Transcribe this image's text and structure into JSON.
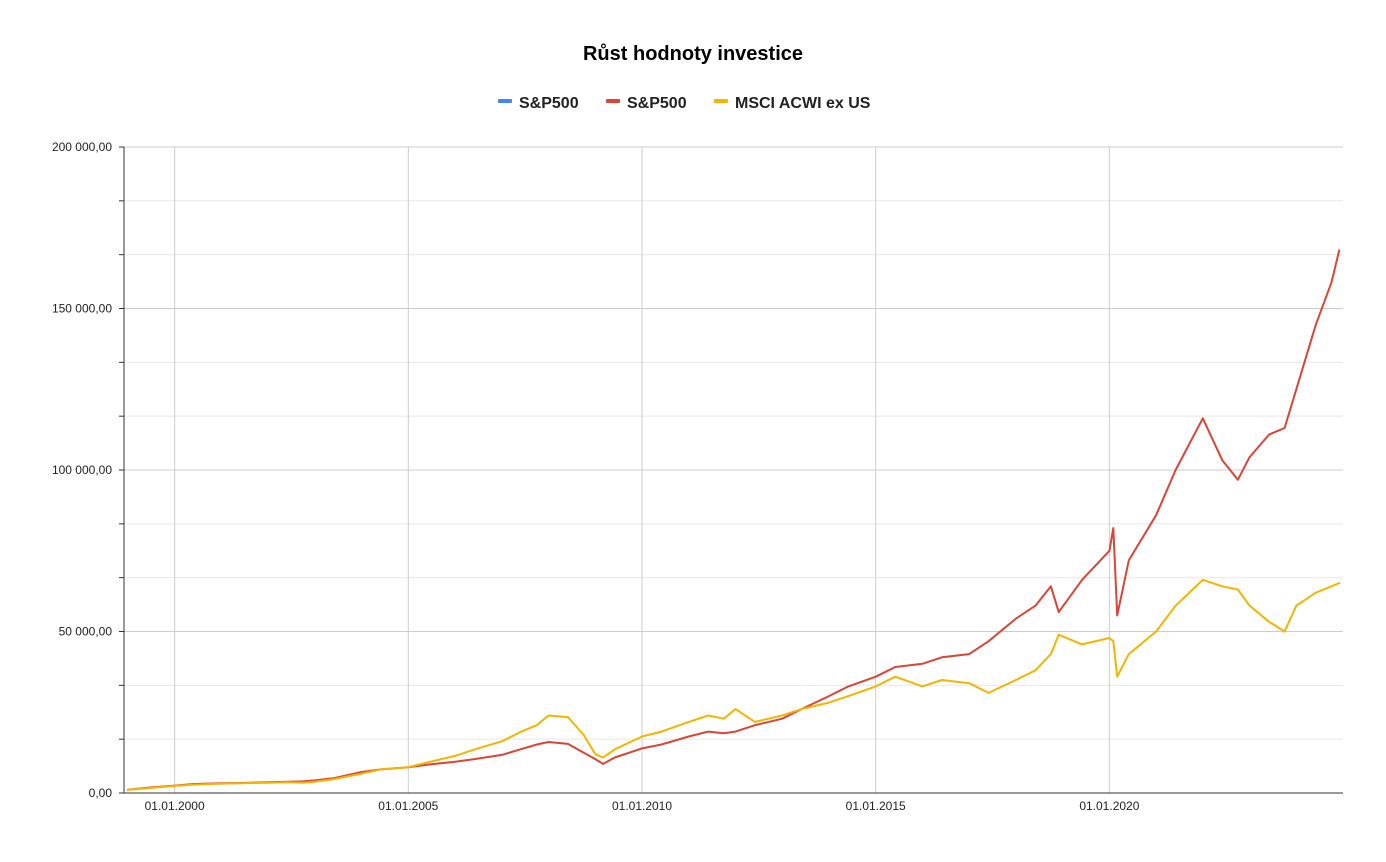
{
  "chart_data": {
    "type": "line",
    "title": "Růst hodnoty investice",
    "xlabel": "",
    "ylabel": "",
    "legend_position": "top",
    "grid": true,
    "x_range": [
      "1998-12-01",
      "2024-12-31"
    ],
    "ylim": [
      0,
      200000
    ],
    "y_ticks": [
      0,
      50000,
      100000,
      150000,
      200000
    ],
    "y_tick_labels": [
      "0,00",
      "50 000,00",
      "100 000,00",
      "150 000,00",
      "200 000,00"
    ],
    "x_ticks": [
      "2000-01-01",
      "2005-01-01",
      "2010-01-01",
      "2015-01-01",
      "2020-01-01"
    ],
    "x_tick_labels": [
      "01.01.2000",
      "01.01.2005",
      "01.01.2010",
      "01.01.2015",
      "01.01.2020"
    ],
    "series": [
      {
        "name": "S&P500",
        "color": "#4285f4",
        "x": [],
        "values": []
      },
      {
        "name": "S&P500",
        "color": "#db4437",
        "x": [
          "1999-01",
          "1999-06",
          "2000-01",
          "2000-06",
          "2001-01",
          "2001-06",
          "2002-01",
          "2002-06",
          "2002-10",
          "2003-01",
          "2003-06",
          "2004-01",
          "2004-06",
          "2005-01",
          "2005-06",
          "2006-01",
          "2006-06",
          "2007-01",
          "2007-06",
          "2007-10",
          "2008-01",
          "2008-06",
          "2008-10",
          "2009-01",
          "2009-03",
          "2009-06",
          "2010-01",
          "2010-06",
          "2011-01",
          "2011-06",
          "2011-10",
          "2012-01",
          "2012-06",
          "2013-01",
          "2013-06",
          "2014-01",
          "2014-06",
          "2015-01",
          "2015-06",
          "2016-01",
          "2016-06",
          "2017-01",
          "2017-06",
          "2018-01",
          "2018-06",
          "2018-10",
          "2018-12",
          "2019-06",
          "2020-01",
          "2020-02",
          "2020-03",
          "2020-06",
          "2021-01",
          "2021-06",
          "2022-01",
          "2022-06",
          "2022-10",
          "2023-01",
          "2023-06",
          "2023-10",
          "2024-01",
          "2024-06",
          "2024-10",
          "2024-12"
        ],
        "values": [
          1000,
          1600,
          2300,
          2800,
          3000,
          3100,
          3300,
          3500,
          3600,
          3900,
          4600,
          6500,
          7300,
          8000,
          8800,
          9700,
          10500,
          11800,
          13600,
          15000,
          15800,
          15200,
          12500,
          10500,
          9000,
          11000,
          13800,
          15000,
          17500,
          19000,
          18500,
          19000,
          21000,
          23000,
          26000,
          30000,
          33000,
          36000,
          39000,
          40000,
          42000,
          43000,
          47000,
          54000,
          58000,
          64000,
          56000,
          66000,
          75000,
          82000,
          55000,
          72000,
          86000,
          100000,
          116000,
          103000,
          97000,
          104000,
          111000,
          113000,
          125000,
          145000,
          158000,
          168000
        ]
      },
      {
        "name": "MSCI ACWI ex US",
        "color": "#f4b400",
        "x": [
          "1999-01",
          "1999-06",
          "2000-01",
          "2000-06",
          "2001-01",
          "2001-06",
          "2002-01",
          "2002-06",
          "2002-10",
          "2003-01",
          "2003-06",
          "2004-01",
          "2004-06",
          "2005-01",
          "2005-06",
          "2006-01",
          "2006-06",
          "2007-01",
          "2007-06",
          "2007-10",
          "2008-01",
          "2008-06",
          "2008-10",
          "2009-01",
          "2009-03",
          "2009-06",
          "2010-01",
          "2010-06",
          "2011-01",
          "2011-06",
          "2011-10",
          "2012-01",
          "2012-06",
          "2013-01",
          "2013-06",
          "2014-01",
          "2014-06",
          "2015-01",
          "2015-06",
          "2016-01",
          "2016-06",
          "2017-01",
          "2017-06",
          "2018-01",
          "2018-06",
          "2018-10",
          "2018-12",
          "2019-06",
          "2020-01",
          "2020-02",
          "2020-03",
          "2020-06",
          "2021-01",
          "2021-06",
          "2022-01",
          "2022-06",
          "2022-10",
          "2023-01",
          "2023-06",
          "2023-10",
          "2024-01",
          "2024-06",
          "2024-10",
          "2024-12"
        ],
        "values": [
          1000,
          1500,
          2200,
          2600,
          2900,
          3000,
          3200,
          3300,
          3200,
          3500,
          4300,
          6000,
          7300,
          8000,
          9500,
          11500,
          13500,
          16000,
          19000,
          21000,
          24000,
          23500,
          18000,
          12000,
          11000,
          13500,
          17500,
          19000,
          22000,
          24000,
          23000,
          26000,
          22000,
          24000,
          26000,
          28000,
          30000,
          33000,
          36000,
          33000,
          35000,
          34000,
          31000,
          35000,
          38000,
          43000,
          49000,
          46000,
          48000,
          47000,
          36000,
          43000,
          50000,
          58000,
          66000,
          64000,
          63000,
          58000,
          53000,
          50000,
          58000,
          62000,
          64000,
          65000
        ]
      }
    ]
  }
}
